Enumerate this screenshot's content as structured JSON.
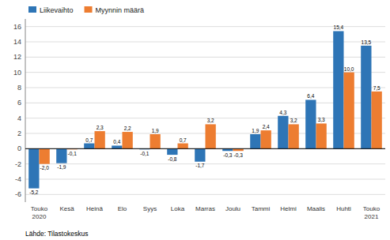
{
  "chart_data": {
    "type": "bar",
    "categories": [
      "Touko\n2020",
      "Kesä",
      "Heinä",
      "Elo",
      "Syys",
      "Loka",
      "Marras",
      "Joulu",
      "Tammi",
      "Helmi",
      "Maalis",
      "Huhti",
      "Touko\n2021"
    ],
    "series": [
      {
        "name": "Liikevaihto",
        "color": "#2E75B6",
        "values": [
          -5.2,
          -1.9,
          0.7,
          0.4,
          -0.1,
          -0.8,
          -1.7,
          -0.3,
          1.9,
          4.3,
          6.4,
          15.4,
          13.5
        ],
        "value_labels": [
          "-5,2",
          "-1,9",
          "0,7",
          "0,4",
          "-0,1",
          "-0,8",
          "-1,7",
          "-0,3",
          "1,9",
          "4,3",
          "6,4",
          "15,4",
          "13,5"
        ]
      },
      {
        "name": "Myynnin määrä",
        "color": "#ED7D31",
        "values": [
          -2.0,
          -0.1,
          2.3,
          2.2,
          1.9,
          0.7,
          3.2,
          -0.3,
          2.4,
          3.2,
          3.3,
          10.0,
          7.5
        ],
        "value_labels": [
          "-2,0",
          "-0,1",
          "2,3",
          "2,2",
          "1,9",
          "0,7",
          "3,2",
          "-0,3",
          "2,4",
          "3,2",
          "3,3",
          "10,0",
          "7,5"
        ]
      }
    ],
    "ylim": [
      -7,
      17
    ],
    "yticks": [
      -6,
      -4,
      -2,
      0,
      2,
      4,
      6,
      8,
      10,
      12,
      14,
      16
    ],
    "grid": true,
    "legend": "upper left",
    "data_labels": true,
    "annotations": [
      "Lähde: Tilastokeskus"
    ]
  }
}
